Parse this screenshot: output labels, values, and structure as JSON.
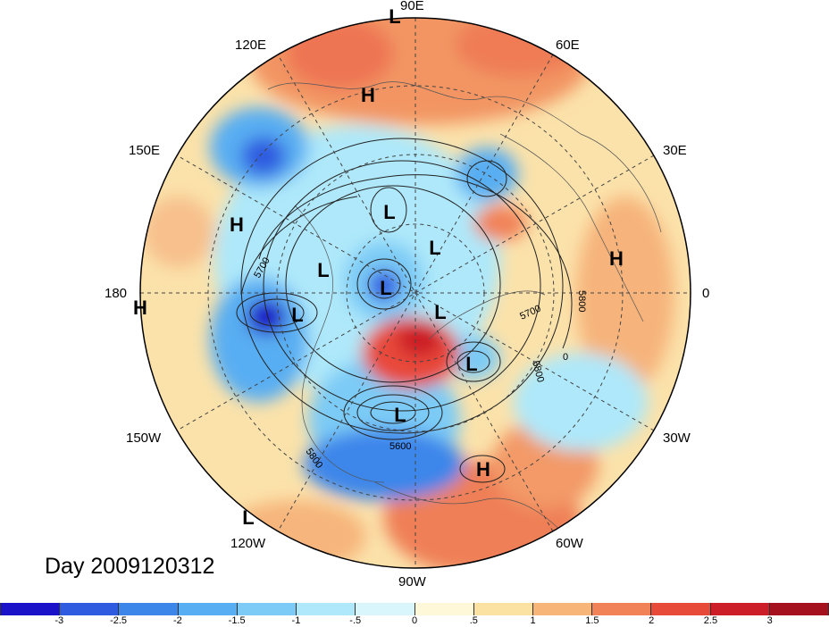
{
  "title": "Day 2009120312",
  "longitude_labels": {
    "lon_90E": "90E",
    "lon_60E": "60E",
    "lon_30E": "30E",
    "lon_0": "0",
    "lon_30W": "30W",
    "lon_60W": "60W",
    "lon_90W": "90W",
    "lon_120W": "120W",
    "lon_150W": "150W",
    "lon_180": "180",
    "lon_150E": "150E",
    "lon_120E": "120E"
  },
  "contour_labels": [
    "5700",
    "5800",
    "5700",
    "5800",
    "5800",
    "5600",
    "0"
  ],
  "pressure_centers": [
    {
      "symbol": "L",
      "type": "low"
    },
    {
      "symbol": "H",
      "type": "high"
    },
    {
      "symbol": "L",
      "type": "low"
    },
    {
      "symbol": "H",
      "type": "high"
    },
    {
      "symbol": "L",
      "type": "low"
    },
    {
      "symbol": "L",
      "type": "low"
    },
    {
      "symbol": "L",
      "type": "low"
    },
    {
      "symbol": "L",
      "type": "low"
    },
    {
      "symbol": "L",
      "type": "low"
    },
    {
      "symbol": "H",
      "type": "high"
    },
    {
      "symbol": "L",
      "type": "low"
    },
    {
      "symbol": "H",
      "type": "high"
    },
    {
      "symbol": "L",
      "type": "low"
    },
    {
      "symbol": "L",
      "type": "low"
    },
    {
      "symbol": "H",
      "type": "high"
    }
  ],
  "colorbar": {
    "colors": [
      "#1a12c8",
      "#2f5be0",
      "#3c86ea",
      "#58aef2",
      "#7ccbf6",
      "#aee8fa",
      "#d8f6fb",
      "#fef8d8",
      "#fbe1a2",
      "#f7b578",
      "#f18258",
      "#e84a3a",
      "#cc1e28",
      "#a5111c"
    ],
    "labels": [
      "-3",
      "-2.5",
      "-2",
      "-1.5",
      "-1",
      "-.5",
      "0",
      ".5",
      "1",
      "1.5",
      "2",
      "2.5",
      "3"
    ]
  }
}
